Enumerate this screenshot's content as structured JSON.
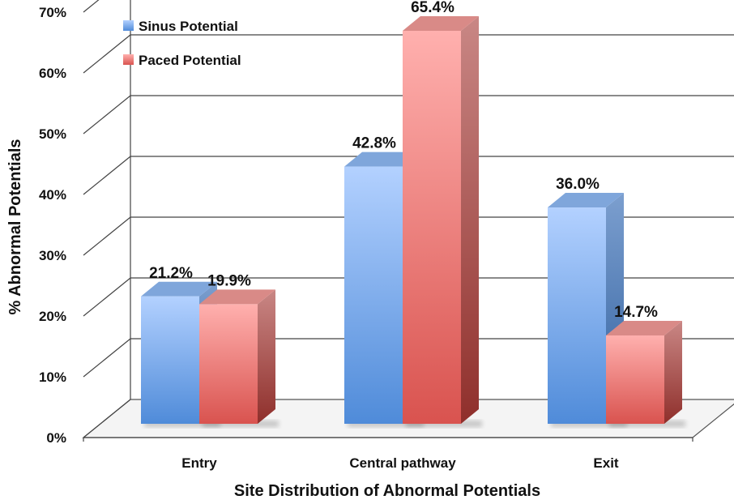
{
  "chart_data": {
    "type": "bar",
    "title": "",
    "xlabel": "Site Distribution of Abnormal Potentials",
    "ylabel": "% Abnormal Potentials",
    "categories": [
      "Entry",
      "Central pathway",
      "Exit"
    ],
    "series": [
      {
        "name": "Sinus Potential",
        "values": [
          21.2,
          42.8,
          36.0
        ],
        "labels": [
          "21.2%",
          "42.8%",
          "36.0%"
        ],
        "color": "#6fa0e6"
      },
      {
        "name": "Paced Potential",
        "values": [
          19.9,
          65.4,
          14.7
        ],
        "labels": [
          "19.9%",
          "65.4%",
          "14.7%"
        ],
        "color": "#e8706c"
      }
    ],
    "ylim": [
      0,
      70
    ],
    "yticks": [
      0,
      10,
      20,
      30,
      40,
      50,
      60,
      70
    ],
    "ytick_labels": [
      "0%",
      "10%",
      "20%",
      "30%",
      "40%",
      "50%",
      "60%",
      "70%"
    ],
    "grid": true,
    "style": "3d",
    "legend_position": "top-left"
  }
}
